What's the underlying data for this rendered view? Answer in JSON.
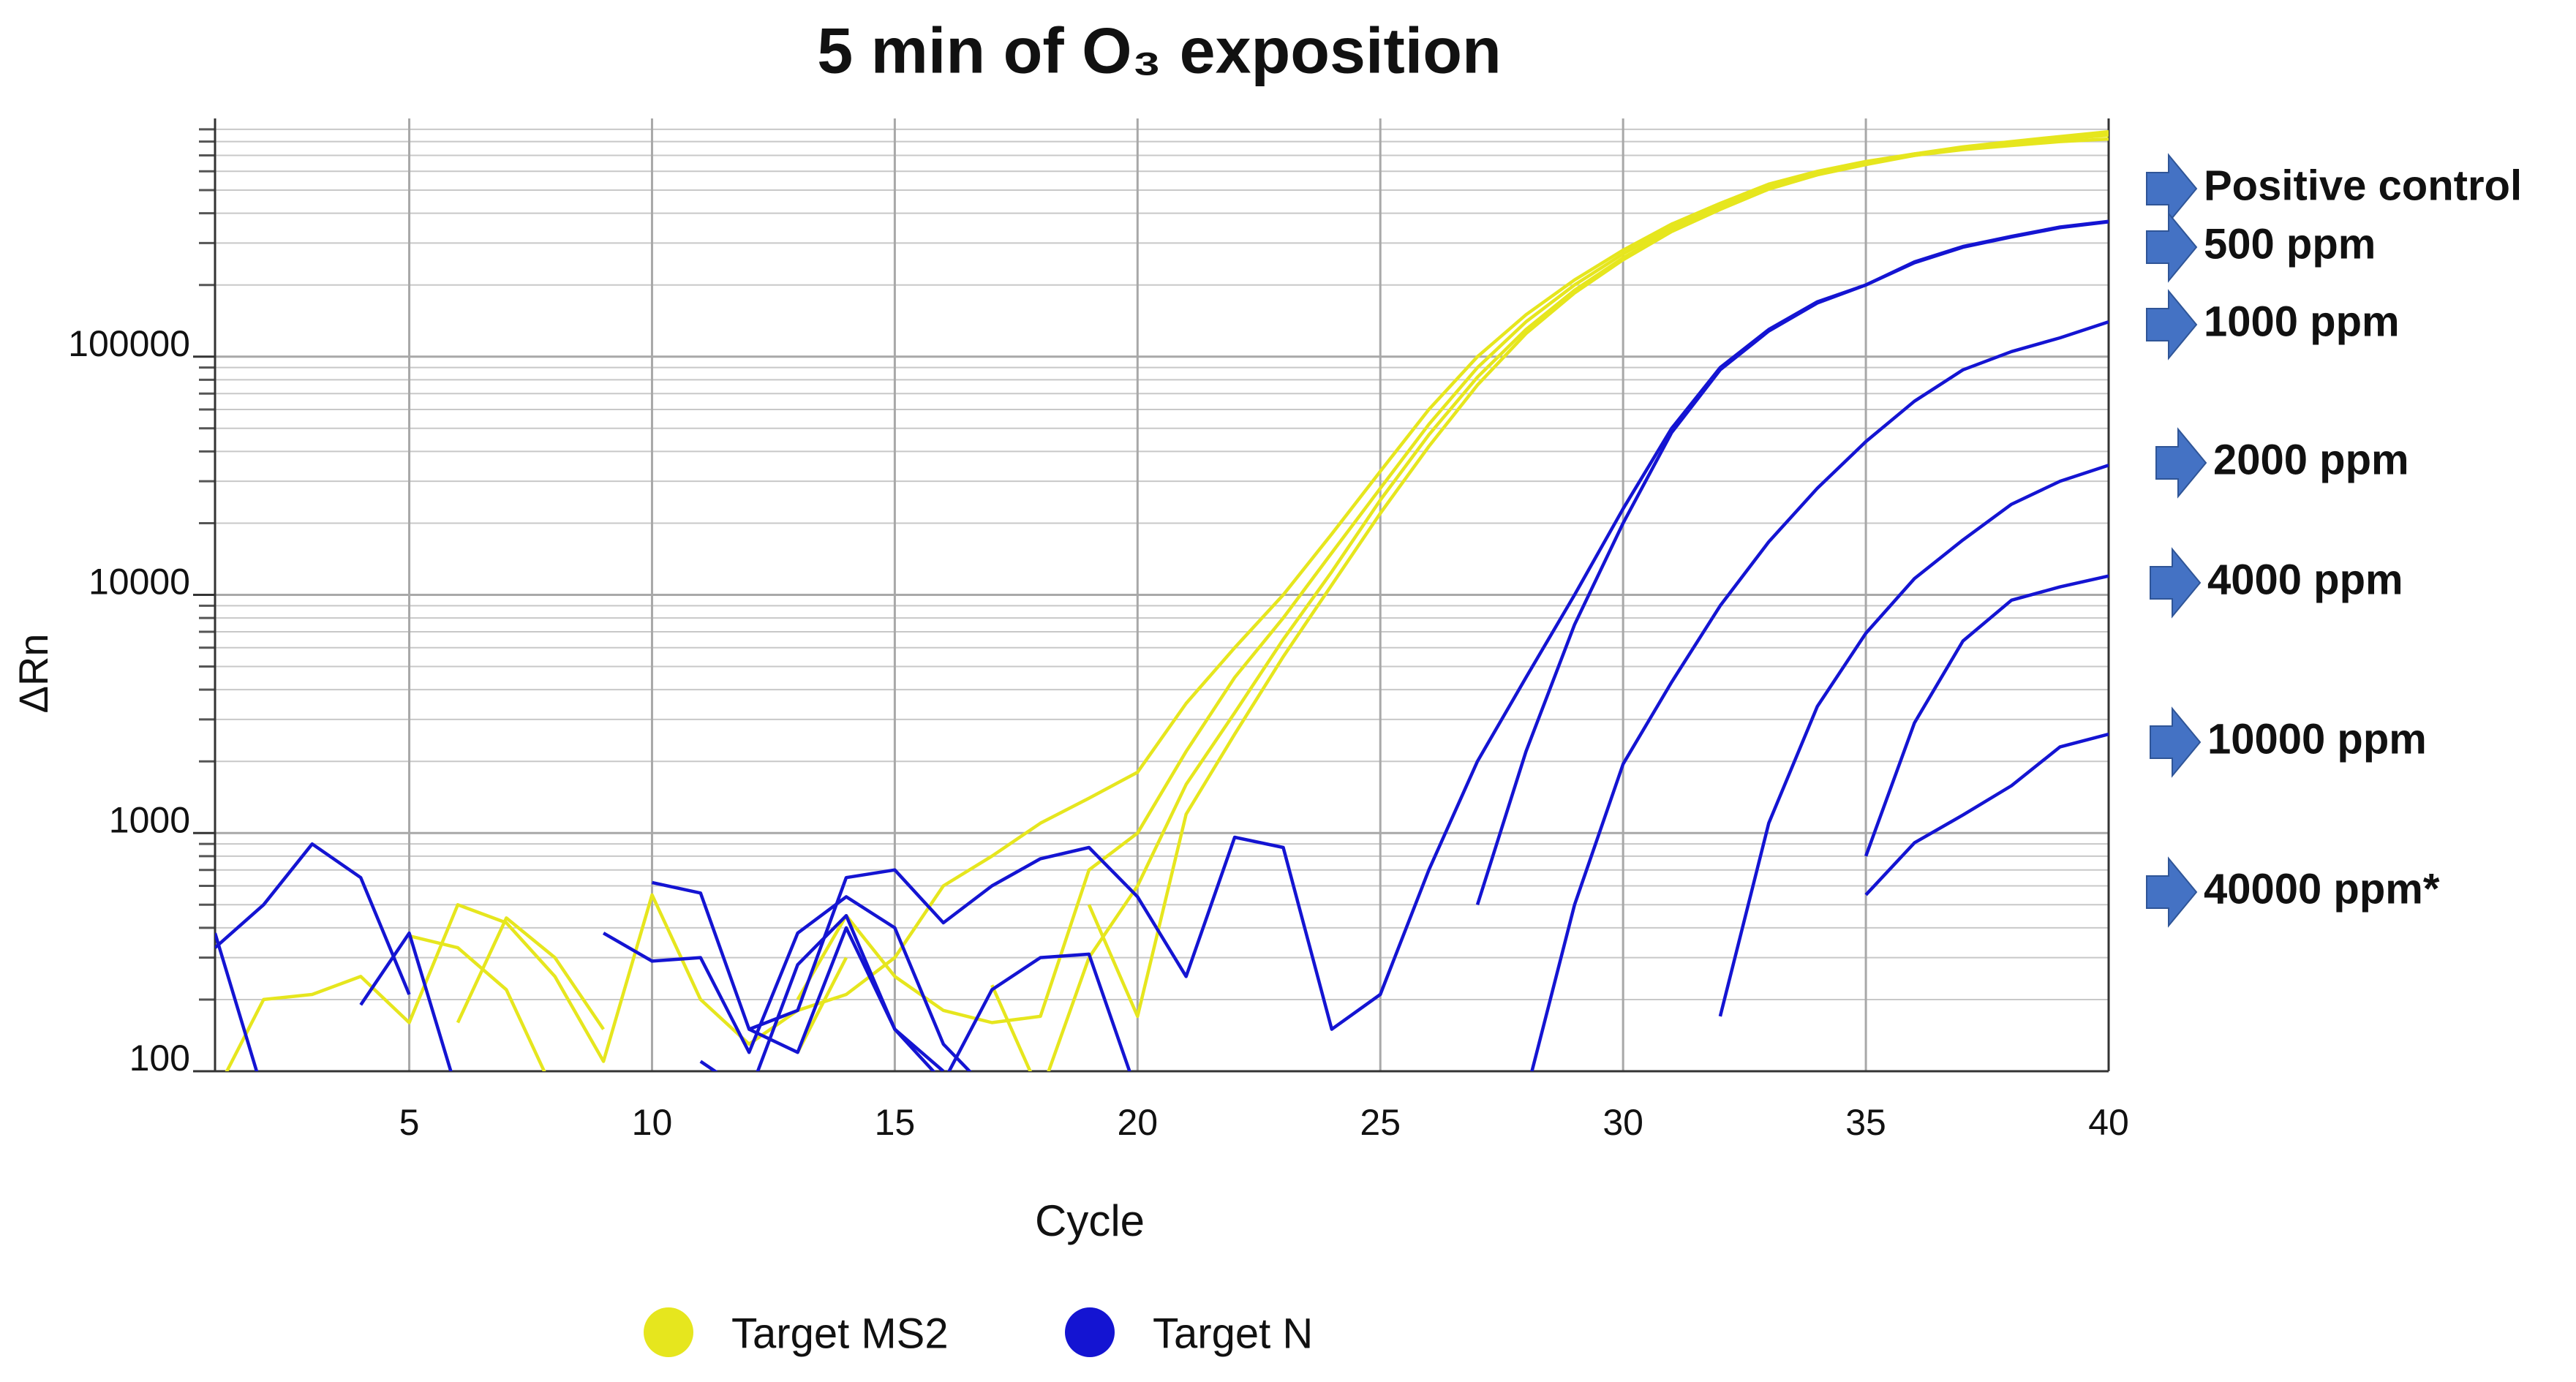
{
  "chart_data": {
    "type": "line",
    "title": "5 min of O₃ exposition",
    "x_label": "Cycle",
    "y_label": "ΔRn",
    "log_y": true,
    "grid": true,
    "minor_grid": true,
    "x": [
      1,
      2,
      3,
      4,
      5,
      6,
      7,
      8,
      9,
      10,
      11,
      12,
      13,
      14,
      15,
      16,
      17,
      18,
      19,
      20,
      21,
      22,
      23,
      24,
      25,
      26,
      27,
      28,
      29,
      30,
      31,
      32,
      33,
      34,
      35,
      36,
      37,
      38,
      39,
      40
    ],
    "xlim": [
      1,
      40
    ],
    "xticks": [
      5,
      10,
      15,
      20,
      25,
      30,
      35,
      40
    ],
    "ylim": [
      100,
      1000000
    ],
    "yticks": [
      100,
      1000,
      10000,
      100000
    ],
    "series": [
      {
        "name": "Target MS2",
        "color": "#e6e61e",
        "lines": [
          [
            80,
            200,
            210,
            250,
            160,
            500,
            420,
            250,
            110,
            550,
            200,
            130,
            180,
            210,
            300,
            600,
            800,
            1100,
            1400,
            1800,
            3500,
            6000,
            10000,
            18000,
            33000,
            60000,
            100000,
            150000,
            210000,
            280000,
            360000,
            440000,
            530000,
            600000,
            660000,
            710000,
            750000,
            790000,
            820000,
            850000
          ],
          [
            null,
            null,
            null,
            null,
            370,
            330,
            220,
            80,
            null,
            300,
            null,
            null,
            200,
            450,
            250,
            180,
            160,
            170,
            700,
            1000,
            2200,
            4500,
            8000,
            15000,
            28000,
            52000,
            90000,
            140000,
            200000,
            270000,
            350000,
            430000,
            520000,
            590000,
            650000,
            700000,
            740000,
            770000,
            800000,
            820000
          ],
          [
            null,
            null,
            null,
            null,
            null,
            160,
            440,
            300,
            150,
            null,
            null,
            null,
            120,
            300,
            null,
            null,
            230,
            80,
            300,
            600,
            1600,
            3200,
            6500,
            12500,
            25000,
            47000,
            82000,
            130000,
            190000,
            260000,
            340000,
            420000,
            510000,
            580000,
            640000,
            700000,
            750000,
            790000,
            830000,
            870000
          ],
          [
            null,
            null,
            null,
            null,
            null,
            null,
            null,
            null,
            null,
            null,
            null,
            null,
            null,
            null,
            null,
            null,
            null,
            null,
            500,
            170,
            1200,
            2600,
            5500,
            11000,
            22000,
            42000,
            76000,
            125000,
            185000,
            255000,
            335000,
            415000,
            505000,
            580000,
            650000,
            710000,
            760000,
            800000,
            840000,
            880000
          ]
        ]
      },
      {
        "name": "Target N",
        "color": "#1414d2",
        "lines": [
          [
            330,
            500,
            900,
            650,
            210,
            null,
            null,
            null,
            null,
            620,
            560,
            150,
            180,
            650,
            700,
            420,
            600,
            780,
            870,
            540,
            250,
            960,
            870,
            150,
            210,
            700,
            2000,
            4500,
            10000,
            23000,
            50000,
            90000,
            130000,
            170000,
            200000,
            250000,
            290000,
            320000,
            350000,
            370000
          ],
          [
            null,
            null,
            null,
            null,
            null,
            null,
            null,
            null,
            380,
            290,
            300,
            120,
            380,
            540,
            400,
            130,
            80,
            null,
            null,
            null,
            null,
            null,
            null,
            null,
            null,
            null,
            500,
            2200,
            7500,
            20000,
            48000,
            88000,
            128000,
            168000,
            200000,
            248000,
            288000,
            318000,
            348000,
            368000
          ],
          [
            380,
            80,
            null,
            190,
            380,
            80,
            null,
            null,
            null,
            null,
            110,
            80,
            280,
            450,
            150,
            90,
            220,
            300,
            310,
            80,
            null,
            null,
            null,
            null,
            null,
            null,
            null,
            80,
            500,
            1950,
            4300,
            9000,
            16700,
            28000,
            44000,
            65000,
            88000,
            105000,
            120000,
            140000
          ],
          [
            null,
            null,
            null,
            null,
            null,
            null,
            null,
            null,
            null,
            null,
            null,
            150,
            120,
            400,
            150,
            100,
            null,
            null,
            null,
            null,
            null,
            null,
            null,
            null,
            null,
            null,
            null,
            null,
            null,
            null,
            null,
            170,
            1100,
            3400,
            6900,
            11700,
            17000,
            24000,
            30000,
            35000
          ],
          [
            null,
            null,
            null,
            null,
            null,
            null,
            null,
            null,
            null,
            null,
            null,
            null,
            null,
            null,
            null,
            null,
            null,
            null,
            null,
            null,
            null,
            null,
            null,
            null,
            null,
            null,
            null,
            null,
            null,
            null,
            null,
            null,
            null,
            null,
            800,
            2900,
            6400,
            9500,
            10800,
            12000
          ],
          [
            null,
            null,
            null,
            null,
            null,
            null,
            null,
            null,
            null,
            null,
            null,
            null,
            null,
            null,
            null,
            null,
            null,
            null,
            null,
            null,
            null,
            null,
            null,
            null,
            null,
            null,
            null,
            null,
            null,
            null,
            null,
            null,
            null,
            null,
            550,
            910,
            1190,
            1580,
            2300,
            2600
          ]
        ]
      }
    ],
    "annotations": [
      "Positive control",
      "500 ppm",
      "1000 ppm",
      "2000 ppm",
      "4000 ppm",
      "10000 ppm",
      "40000 ppm*"
    ],
    "annotation_color": "#4472c4"
  }
}
